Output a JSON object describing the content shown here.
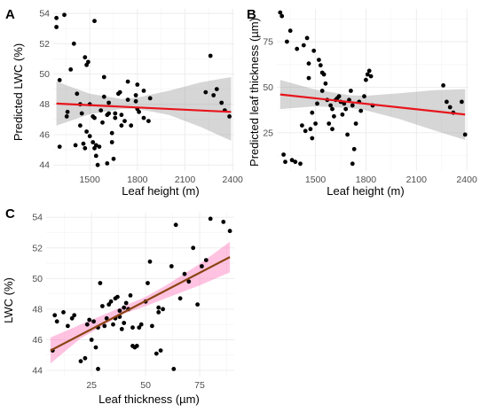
{
  "chart_data": [
    {
      "type": "scatter",
      "panel_label": "A",
      "xlabel": "Leaf height (m)",
      "ylabel": "Predicted LWC (%)",
      "xlim": [
        1270,
        2410
      ],
      "ylim": [
        43.6,
        54.3
      ],
      "xticks": [
        1500,
        1800,
        2100,
        2400
      ],
      "xtick_labels": [
        "1500",
        "1800",
        "2100",
        "2400"
      ],
      "yticks": [
        44,
        46,
        48,
        50,
        52,
        54
      ],
      "ytick_labels": [
        "44",
        "46",
        "48",
        "50",
        "52",
        "54"
      ],
      "grid": true,
      "points": [
        [
          1290,
          53.7
        ],
        [
          1290,
          53.1
        ],
        [
          1310,
          49.6
        ],
        [
          1310,
          45.2
        ],
        [
          1340,
          53.9
        ],
        [
          1355,
          47.2
        ],
        [
          1360,
          47.5
        ],
        [
          1380,
          50.3
        ],
        [
          1400,
          52.0
        ],
        [
          1410,
          45.3
        ],
        [
          1420,
          48.7
        ],
        [
          1440,
          48.0
        ],
        [
          1440,
          46.6
        ],
        [
          1450,
          47.4
        ],
        [
          1460,
          45.4
        ],
        [
          1470,
          51.1
        ],
        [
          1470,
          45.1
        ],
        [
          1480,
          46.2
        ],
        [
          1480,
          50.6
        ],
        [
          1490,
          50.8
        ],
        [
          1500,
          48.0
        ],
        [
          1500,
          45.9
        ],
        [
          1520,
          47.2
        ],
        [
          1520,
          45.5
        ],
        [
          1530,
          53.5
        ],
        [
          1530,
          47.1
        ],
        [
          1530,
          45.1
        ],
        [
          1540,
          44.6
        ],
        [
          1540,
          45.3
        ],
        [
          1550,
          44.0
        ],
        [
          1560,
          45.2
        ],
        [
          1570,
          47.6
        ],
        [
          1580,
          46.8
        ],
        [
          1590,
          49.8
        ],
        [
          1590,
          48.5
        ],
        [
          1610,
          47.3
        ],
        [
          1610,
          44.1
        ],
        [
          1620,
          48.1
        ],
        [
          1620,
          47.4
        ],
        [
          1640,
          46.1
        ],
        [
          1640,
          45.5
        ],
        [
          1650,
          44.4
        ],
        [
          1660,
          47.4
        ],
        [
          1660,
          47.1
        ],
        [
          1680,
          48.7
        ],
        [
          1690,
          48.8
        ],
        [
          1700,
          46.6
        ],
        [
          1700,
          47.3
        ],
        [
          1720,
          46.9
        ],
        [
          1740,
          49.5
        ],
        [
          1740,
          48.3
        ],
        [
          1760,
          46.6
        ],
        [
          1790,
          48.6
        ],
        [
          1790,
          48.2
        ],
        [
          1800,
          49.3
        ],
        [
          1800,
          47.7
        ],
        [
          1810,
          47.5
        ],
        [
          1840,
          48.9
        ],
        [
          1840,
          47.1
        ],
        [
          1870,
          46.9
        ],
        [
          1880,
          48.4
        ],
        [
          2230,
          48.8
        ],
        [
          2260,
          51.2
        ],
        [
          2280,
          48.6
        ],
        [
          2300,
          49.0
        ],
        [
          2330,
          48.1
        ],
        [
          2350,
          47.6
        ],
        [
          2380,
          47.2
        ]
      ],
      "fit": {
        "x": [
          1290,
          2390
        ],
        "y": [
          48.05,
          47.5
        ]
      },
      "band": {
        "x": [
          1290,
          1500,
          1700,
          1800,
          2000,
          2200,
          2390
        ],
        "lower": [
          46.6,
          47.35,
          47.7,
          47.7,
          47.3,
          46.5,
          45.6
        ],
        "upper": [
          49.5,
          48.7,
          48.35,
          48.45,
          48.9,
          49.45,
          49.8
        ]
      },
      "colors": {
        "point": "#000000",
        "line": "#e8141c",
        "band": "#999999"
      }
    },
    {
      "type": "scatter",
      "panel_label": "B",
      "xlabel": "Leaf height (m)",
      "ylabel": "Predicted leaf thickness (µm)",
      "xlim": [
        1270,
        2410
      ],
      "ylim": [
        4,
        93
      ],
      "xticks": [
        1500,
        1800,
        2100,
        2400
      ],
      "xtick_labels": [
        "1500",
        "1800",
        "2100",
        "2400"
      ],
      "yticks": [
        25,
        50,
        75
      ],
      "ytick_labels": [
        "25",
        "50",
        "75"
      ],
      "grid": true,
      "points": [
        [
          1290,
          91
        ],
        [
          1300,
          89
        ],
        [
          1310,
          13
        ],
        [
          1320,
          9
        ],
        [
          1330,
          75
        ],
        [
          1350,
          81
        ],
        [
          1360,
          10
        ],
        [
          1380,
          9
        ],
        [
          1390,
          71
        ],
        [
          1410,
          8
        ],
        [
          1420,
          29
        ],
        [
          1430,
          73
        ],
        [
          1440,
          26
        ],
        [
          1450,
          77
        ],
        [
          1460,
          63
        ],
        [
          1460,
          55
        ],
        [
          1470,
          27
        ],
        [
          1480,
          36
        ],
        [
          1480,
          22
        ],
        [
          1490,
          70
        ],
        [
          1500,
          30
        ],
        [
          1510,
          41
        ],
        [
          1520,
          65
        ],
        [
          1530,
          62
        ],
        [
          1540,
          58
        ],
        [
          1540,
          48
        ],
        [
          1550,
          57
        ],
        [
          1560,
          52
        ],
        [
          1570,
          43
        ],
        [
          1580,
          30
        ],
        [
          1590,
          40
        ],
        [
          1600,
          38
        ],
        [
          1600,
          27
        ],
        [
          1610,
          34
        ],
        [
          1620,
          43
        ],
        [
          1630,
          44
        ],
        [
          1640,
          45
        ],
        [
          1650,
          42
        ],
        [
          1660,
          35
        ],
        [
          1670,
          41
        ],
        [
          1680,
          38
        ],
        [
          1690,
          24
        ],
        [
          1700,
          43
        ],
        [
          1710,
          48
        ],
        [
          1720,
          40
        ],
        [
          1720,
          8
        ],
        [
          1730,
          16
        ],
        [
          1740,
          30
        ],
        [
          1760,
          42
        ],
        [
          1770,
          37
        ],
        [
          1790,
          45
        ],
        [
          1800,
          54
        ],
        [
          1810,
          57
        ],
        [
          1820,
          59
        ],
        [
          1830,
          56
        ],
        [
          1840,
          40
        ],
        [
          2260,
          51
        ],
        [
          2280,
          42
        ],
        [
          2300,
          39
        ],
        [
          2320,
          36
        ],
        [
          2370,
          42
        ],
        [
          2390,
          24
        ]
      ],
      "fit": {
        "x": [
          1290,
          2390
        ],
        "y": [
          46,
          35
        ]
      },
      "band": {
        "x": [
          1290,
          1500,
          1700,
          1800,
          2000,
          2200,
          2390
        ],
        "lower": [
          38,
          39.5,
          38.6,
          37.3,
          32.5,
          26.5,
          21
        ],
        "upper": [
          54,
          48.7,
          45.6,
          45.3,
          46.7,
          48.3,
          49
        ]
      },
      "colors": {
        "point": "#000000",
        "line": "#e8141c",
        "band": "#999999"
      }
    },
    {
      "type": "scatter",
      "panel_label": "C",
      "xlabel": "Leaf thickness (µm)",
      "ylabel": "LWC (%)",
      "xlim": [
        4,
        91
      ],
      "ylim": [
        43.6,
        54.3
      ],
      "xticks": [
        25,
        50,
        75
      ],
      "xtick_labels": [
        "25",
        "50",
        "75"
      ],
      "yticks": [
        44,
        46,
        48,
        50,
        52,
        54
      ],
      "ytick_labels": [
        "44",
        "46",
        "48",
        "50",
        "52",
        "54"
      ],
      "grid": true,
      "points": [
        [
          7,
          45.3
        ],
        [
          8,
          47.6
        ],
        [
          9,
          47.2
        ],
        [
          12,
          47.8
        ],
        [
          14,
          46.9
        ],
        [
          16,
          47.4
        ],
        [
          17,
          47.6
        ],
        [
          20,
          44.6
        ],
        [
          22,
          44.8
        ],
        [
          23,
          47.0
        ],
        [
          24,
          47.3
        ],
        [
          25,
          46.0
        ],
        [
          26,
          47.2
        ],
        [
          27,
          45.5
        ],
        [
          28,
          46.8
        ],
        [
          28,
          44.1
        ],
        [
          29,
          49.7
        ],
        [
          30,
          48.2
        ],
        [
          31,
          46.9
        ],
        [
          32,
          47.4
        ],
        [
          33,
          48.3
        ],
        [
          34,
          48.5
        ],
        [
          35,
          47.0
        ],
        [
          36,
          48.7
        ],
        [
          36,
          47.4
        ],
        [
          37,
          48.8
        ],
        [
          38,
          47.9
        ],
        [
          38,
          47.5
        ],
        [
          39,
          46.7
        ],
        [
          40,
          47.1
        ],
        [
          40,
          48.1
        ],
        [
          41,
          48.4
        ],
        [
          42,
          48.0
        ],
        [
          43,
          48.9
        ],
        [
          44,
          46.8
        ],
        [
          44,
          45.6
        ],
        [
          45,
          45.5
        ],
        [
          46,
          45.6
        ],
        [
          47,
          46.8
        ],
        [
          48,
          47.0
        ],
        [
          50,
          48.5
        ],
        [
          51,
          49.7
        ],
        [
          52,
          51.1
        ],
        [
          53,
          46.9
        ],
        [
          55,
          45.1
        ],
        [
          56,
          47.8
        ],
        [
          56,
          48.1
        ],
        [
          57,
          45.3
        ],
        [
          58,
          48.0
        ],
        [
          62,
          50.8
        ],
        [
          63,
          44.1
        ],
        [
          64,
          53.5
        ],
        [
          66,
          48.7
        ],
        [
          68,
          50.3
        ],
        [
          70,
          49.8
        ],
        [
          72,
          52.0
        ],
        [
          74,
          48.3
        ],
        [
          76,
          50.8
        ],
        [
          78,
          51.2
        ],
        [
          80,
          53.9
        ],
        [
          86,
          53.7
        ],
        [
          89,
          53.1
        ]
      ],
      "fit": {
        "x": [
          6,
          89
        ],
        "y": [
          45.3,
          51.4
        ]
      },
      "band": {
        "x": [
          6,
          20,
          40,
          50,
          60,
          75,
          89
        ],
        "lower": [
          44.45,
          46.1,
          47.7,
          48.2,
          48.75,
          49.55,
          50.4
        ],
        "upper": [
          46.15,
          47.0,
          48.2,
          48.8,
          49.6,
          50.95,
          52.4
        ]
      },
      "colors": {
        "point": "#000000",
        "line": "#8b4513",
        "band": "#ff69b4"
      }
    }
  ]
}
